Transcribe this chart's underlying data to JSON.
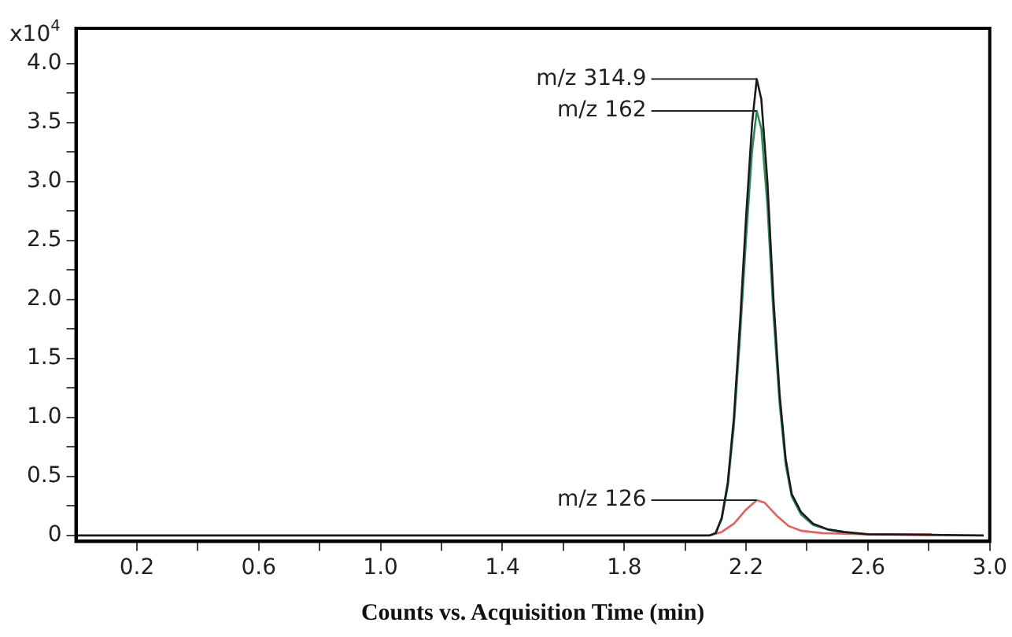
{
  "chart_data": {
    "type": "line",
    "xlabel": "Counts vs. Acquisition Time (min)",
    "ylabel": "x10$^{4}$",
    "xlim": [
      0,
      3.0
    ],
    "ylim": [
      -0.05,
      4.3
    ],
    "xticks": [
      {
        "value": 0.2,
        "label": "0.2"
      },
      {
        "value": 0.4,
        "label": null
      },
      {
        "value": 0.6,
        "label": "0.6"
      },
      {
        "value": 0.8,
        "label": null
      },
      {
        "value": 1.0,
        "label": "1.0"
      },
      {
        "value": 1.2,
        "label": null
      },
      {
        "value": 1.4,
        "label": "1.4"
      },
      {
        "value": 1.6,
        "label": null
      },
      {
        "value": 1.8,
        "label": "1.8"
      },
      {
        "value": 2.0,
        "label": null
      },
      {
        "value": 2.2,
        "label": "2.2"
      },
      {
        "value": 2.4,
        "label": null
      },
      {
        "value": 2.6,
        "label": "2.6"
      },
      {
        "value": 2.8,
        "label": null
      },
      {
        "value": 3.0,
        "label": "3.0"
      }
    ],
    "yticks": [
      0,
      {
        "value": 0.25,
        "label": null
      },
      {
        "value": 0.5,
        "label": "0.5"
      },
      {
        "value": 0.75,
        "label": null
      },
      {
        "value": 1.0,
        "label": "1.0"
      },
      {
        "value": 1.25,
        "label": null
      },
      {
        "value": 1.5,
        "label": "1.5"
      },
      {
        "value": 1.75,
        "label": null
      },
      {
        "value": 2.0,
        "label": "2.0"
      },
      {
        "value": 2.25,
        "label": null
      },
      {
        "value": 2.5,
        "label": "2.5"
      },
      {
        "value": 2.75,
        "label": null
      },
      {
        "value": 3.0,
        "label": "3.0"
      },
      {
        "value": 3.25,
        "label": null
      },
      {
        "value": 3.5,
        "label": "3.5"
      },
      {
        "value": 3.75,
        "label": null
      },
      {
        "value": 4.0,
        "label": "4.0"
      }
    ],
    "grid": false,
    "legend": false,
    "annotations": [
      "m/z 314.9",
      "m/z 162",
      "m/z 126"
    ],
    "marker": "none",
    "line_style": "solid",
    "series": [
      {
        "color": "#1a1a1a",
        "x": [
          0,
          2.08,
          2.1,
          2.12,
          2.14,
          2.16,
          2.18,
          2.2,
          2.22,
          2.235,
          2.25,
          2.27,
          2.29,
          2.31,
          2.33,
          2.35,
          2.38,
          2.42,
          2.47,
          2.52,
          2.6,
          2.98
        ],
        "values": [
          0,
          0,
          0.02,
          0.15,
          0.45,
          1.0,
          1.8,
          2.7,
          3.5,
          3.87,
          3.7,
          3.0,
          2.0,
          1.2,
          0.65,
          0.35,
          0.2,
          0.1,
          0.05,
          0.03,
          0.01,
          0
        ]
      },
      {
        "color": "#2e8b57",
        "x": [
          2.08,
          2.1,
          2.12,
          2.14,
          2.16,
          2.18,
          2.2,
          2.22,
          2.235,
          2.25,
          2.27,
          2.29,
          2.31,
          2.33,
          2.35,
          2.38,
          2.42,
          2.47,
          2.52
        ],
        "values": [
          0,
          0.02,
          0.14,
          0.42,
          0.93,
          1.68,
          2.52,
          3.27,
          3.6,
          3.45,
          2.8,
          1.87,
          1.12,
          0.6,
          0.33,
          0.18,
          0.09,
          0.05,
          0.03
        ]
      },
      {
        "color": "#e8605a",
        "x": [
          2.08,
          2.12,
          2.16,
          2.2,
          2.235,
          2.26,
          2.3,
          2.34,
          2.38,
          2.45,
          2.6,
          2.81
        ],
        "values": [
          0,
          0.03,
          0.1,
          0.22,
          0.3,
          0.28,
          0.17,
          0.08,
          0.04,
          0.02,
          0.01,
          0.01
        ]
      }
    ]
  }
}
